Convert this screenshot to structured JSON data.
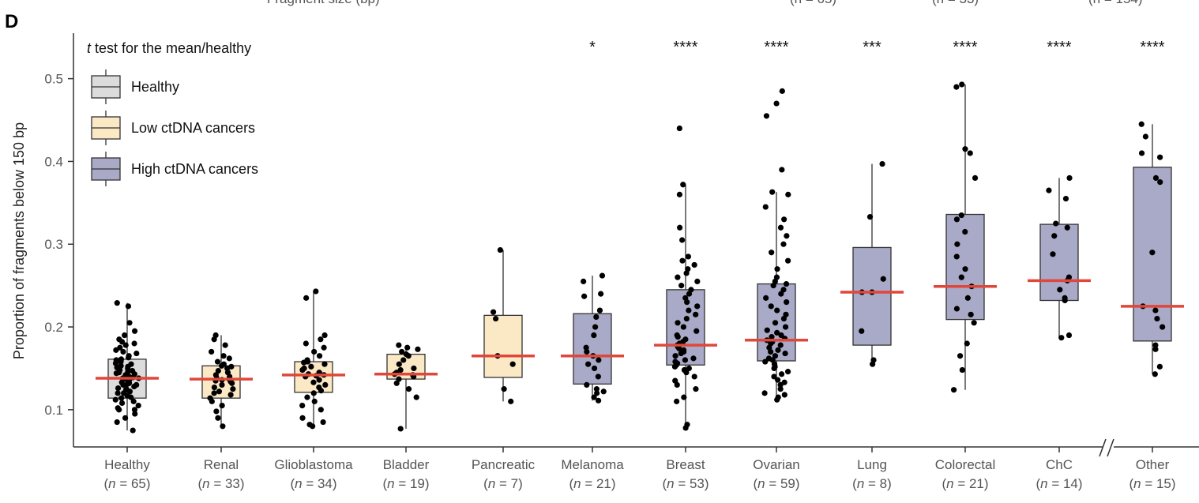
{
  "panel": {
    "letter": "D"
  },
  "top_cropped_text": [
    "Fragment size (bp)",
    "(n = 65)",
    "(n = 33)",
    "(n = 154)"
  ],
  "legend": {
    "title_italic": "t",
    "title_rest": " test for the mean/healthy",
    "items": [
      {
        "label": "Healthy",
        "color": "#dcdcdc"
      },
      {
        "label": "Low ctDNA cancers",
        "color": "#fbe9c6"
      },
      {
        "label": "High ctDNA cancers",
        "color": "#a9a9c8"
      }
    ]
  },
  "colors": {
    "median": "#e0473a",
    "point": "#000000",
    "box_stroke": "#333333",
    "axis": "#333333"
  },
  "chart_data": {
    "type": "box",
    "ylabel": "Proportion of fragments below 150 bp",
    "ylim": [
      0.055,
      0.555
    ],
    "yticks": [
      0.1,
      0.2,
      0.3,
      0.4,
      0.5
    ],
    "ytick_labels": [
      "0.1",
      "0.2",
      "0.3",
      "0.4",
      "0.5"
    ],
    "axis_break_before": "Other",
    "n_prefix": "(",
    "n_letter": "n",
    "groups": [
      {
        "name": "Healthy",
        "n_text": " = 65)",
        "class": "healthy",
        "sig": "",
        "q1": 0.114,
        "median": 0.138,
        "q3": 0.161,
        "wlo": 0.075,
        "whi": 0.229,
        "points": [
          0.075,
          0.085,
          0.09,
          0.095,
          0.1,
          0.1,
          0.102,
          0.105,
          0.108,
          0.11,
          0.112,
          0.114,
          0.115,
          0.117,
          0.12,
          0.12,
          0.122,
          0.124,
          0.125,
          0.126,
          0.128,
          0.13,
          0.13,
          0.131,
          0.132,
          0.133,
          0.135,
          0.136,
          0.137,
          0.138,
          0.138,
          0.139,
          0.14,
          0.141,
          0.142,
          0.143,
          0.144,
          0.145,
          0.146,
          0.147,
          0.148,
          0.15,
          0.151,
          0.152,
          0.153,
          0.155,
          0.156,
          0.158,
          0.16,
          0.161,
          0.163,
          0.165,
          0.168,
          0.17,
          0.172,
          0.175,
          0.178,
          0.18,
          0.182,
          0.185,
          0.19,
          0.195,
          0.205,
          0.225,
          0.229
        ]
      },
      {
        "name": "Renal",
        "n_text": " = 33)",
        "class": "low",
        "sig": "",
        "q1": 0.114,
        "median": 0.137,
        "q3": 0.153,
        "wlo": 0.08,
        "whi": 0.19,
        "points": [
          0.08,
          0.09,
          0.098,
          0.105,
          0.11,
          0.114,
          0.118,
          0.12,
          0.122,
          0.125,
          0.127,
          0.13,
          0.132,
          0.134,
          0.135,
          0.136,
          0.137,
          0.138,
          0.14,
          0.142,
          0.145,
          0.147,
          0.15,
          0.152,
          0.153,
          0.155,
          0.158,
          0.162,
          0.165,
          0.17,
          0.178,
          0.185,
          0.19
        ]
      },
      {
        "name": "Glioblastoma",
        "n_text": " = 34)",
        "class": "low",
        "sig": "",
        "q1": 0.121,
        "median": 0.142,
        "q3": 0.158,
        "wlo": 0.08,
        "whi": 0.243,
        "points": [
          0.08,
          0.082,
          0.085,
          0.09,
          0.1,
          0.105,
          0.11,
          0.115,
          0.12,
          0.123,
          0.127,
          0.13,
          0.133,
          0.136,
          0.14,
          0.141,
          0.142,
          0.143,
          0.145,
          0.148,
          0.15,
          0.152,
          0.155,
          0.157,
          0.158,
          0.16,
          0.165,
          0.17,
          0.175,
          0.18,
          0.185,
          0.19,
          0.235,
          0.243
        ]
      },
      {
        "name": "Bladder",
        "n_text": " = 19)",
        "class": "low",
        "sig": "",
        "q1": 0.137,
        "median": 0.143,
        "q3": 0.167,
        "wlo": 0.077,
        "whi": 0.178,
        "points": [
          0.077,
          0.115,
          0.125,
          0.132,
          0.137,
          0.14,
          0.142,
          0.143,
          0.145,
          0.148,
          0.15,
          0.155,
          0.16,
          0.165,
          0.167,
          0.17,
          0.173,
          0.175,
          0.178
        ]
      },
      {
        "name": "Pancreatic",
        "n_text": " = 7)",
        "class": "low",
        "sig": "",
        "q1": 0.139,
        "median": 0.165,
        "q3": 0.214,
        "wlo": 0.11,
        "whi": 0.293,
        "points": [
          0.11,
          0.125,
          0.155,
          0.165,
          0.21,
          0.218,
          0.293
        ]
      },
      {
        "name": "Melanoma",
        "n_text": " = 21)",
        "class": "high",
        "sig": "*",
        "q1": 0.131,
        "median": 0.165,
        "q3": 0.216,
        "wlo": 0.111,
        "whi": 0.262,
        "points": [
          0.111,
          0.115,
          0.12,
          0.122,
          0.125,
          0.13,
          0.14,
          0.15,
          0.155,
          0.16,
          0.165,
          0.17,
          0.175,
          0.19,
          0.2,
          0.212,
          0.22,
          0.237,
          0.24,
          0.255,
          0.262
        ]
      },
      {
        "name": "Breast",
        "n_text": " = 53)",
        "class": "high",
        "sig": "****",
        "q1": 0.154,
        "median": 0.178,
        "q3": 0.245,
        "wlo": 0.078,
        "whi": 0.372,
        "points": [
          0.078,
          0.082,
          0.11,
          0.115,
          0.125,
          0.13,
          0.135,
          0.14,
          0.145,
          0.148,
          0.15,
          0.152,
          0.154,
          0.156,
          0.158,
          0.16,
          0.162,
          0.165,
          0.168,
          0.17,
          0.172,
          0.174,
          0.176,
          0.178,
          0.18,
          0.182,
          0.185,
          0.188,
          0.19,
          0.195,
          0.2,
          0.205,
          0.21,
          0.215,
          0.22,
          0.225,
          0.23,
          0.235,
          0.24,
          0.245,
          0.25,
          0.255,
          0.26,
          0.265,
          0.27,
          0.275,
          0.28,
          0.285,
          0.305,
          0.32,
          0.36,
          0.372,
          0.44
        ]
      },
      {
        "name": "Ovarian",
        "n_text": " = 59)",
        "class": "high",
        "sig": "****",
        "q1": 0.159,
        "median": 0.184,
        "q3": 0.252,
        "wlo": 0.112,
        "whi": 0.363,
        "points": [
          0.112,
          0.115,
          0.118,
          0.12,
          0.125,
          0.13,
          0.133,
          0.136,
          0.14,
          0.143,
          0.146,
          0.15,
          0.152,
          0.155,
          0.158,
          0.16,
          0.162,
          0.165,
          0.168,
          0.17,
          0.172,
          0.175,
          0.178,
          0.18,
          0.182,
          0.184,
          0.186,
          0.188,
          0.19,
          0.193,
          0.196,
          0.2,
          0.205,
          0.21,
          0.215,
          0.22,
          0.225,
          0.23,
          0.235,
          0.24,
          0.245,
          0.25,
          0.252,
          0.255,
          0.26,
          0.27,
          0.28,
          0.29,
          0.3,
          0.31,
          0.32,
          0.33,
          0.345,
          0.36,
          0.363,
          0.39,
          0.455,
          0.47,
          0.485
        ]
      },
      {
        "name": "Lung",
        "n_text": " = 8)",
        "class": "high",
        "sig": "***",
        "q1": 0.178,
        "median": 0.242,
        "q3": 0.296,
        "wlo": 0.155,
        "whi": 0.397,
        "points": [
          0.155,
          0.16,
          0.195,
          0.242,
          0.258,
          0.333,
          0.397,
          0.242
        ]
      },
      {
        "name": "Colorectal",
        "n_text": " = 21)",
        "class": "high",
        "sig": "****",
        "q1": 0.209,
        "median": 0.249,
        "q3": 0.336,
        "wlo": 0.124,
        "whi": 0.493,
        "points": [
          0.124,
          0.148,
          0.165,
          0.18,
          0.205,
          0.215,
          0.222,
          0.235,
          0.249,
          0.26,
          0.27,
          0.285,
          0.3,
          0.315,
          0.33,
          0.335,
          0.38,
          0.41,
          0.415,
          0.49,
          0.493
        ]
      },
      {
        "name": "ChC",
        "n_text": " = 14)",
        "class": "high",
        "sig": "****",
        "q1": 0.232,
        "median": 0.256,
        "q3": 0.324,
        "wlo": 0.187,
        "whi": 0.38,
        "points": [
          0.187,
          0.19,
          0.232,
          0.235,
          0.245,
          0.256,
          0.26,
          0.288,
          0.31,
          0.32,
          0.325,
          0.355,
          0.365,
          0.38
        ]
      },
      {
        "name": "Other",
        "n_text": " = 15)",
        "class": "high",
        "sig": "****",
        "q1": 0.183,
        "median": 0.225,
        "q3": 0.393,
        "wlo": 0.143,
        "whi": 0.445,
        "points": [
          0.143,
          0.152,
          0.173,
          0.178,
          0.2,
          0.21,
          0.225,
          0.29,
          0.375,
          0.38,
          0.405,
          0.41,
          0.43,
          0.445,
          0.22
        ]
      }
    ]
  }
}
